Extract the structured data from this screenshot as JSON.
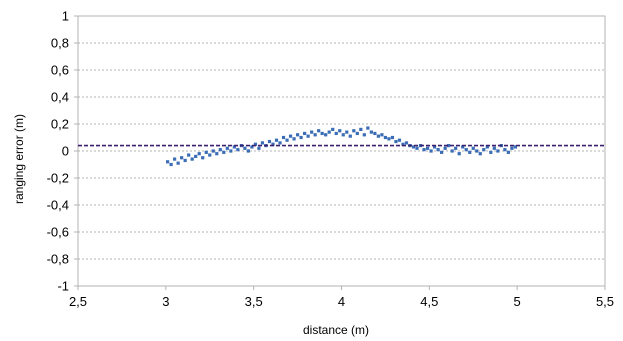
{
  "chart_data": {
    "type": "scatter",
    "title": "",
    "xlabel": "distance (m)",
    "ylabel": "ranging error (m)",
    "xlim": [
      2.5,
      5.5
    ],
    "ylim": [
      -1,
      1
    ],
    "x_ticks": [
      "2,5",
      "3",
      "3,5",
      "4",
      "4,5",
      "5",
      "5,5"
    ],
    "y_ticks": [
      "-1",
      "-0,8",
      "-0,6",
      "-0,4",
      "-0,2",
      "0",
      "0,2",
      "0,4",
      "0,6",
      "0,8",
      "1"
    ],
    "grid": true,
    "legend": "none",
    "series": [
      {
        "marker_color": "#3a6db5",
        "x": [
          3.01,
          3.03,
          3.05,
          3.07,
          3.09,
          3.11,
          3.13,
          3.15,
          3.17,
          3.19,
          3.21,
          3.23,
          3.25,
          3.27,
          3.29,
          3.31,
          3.33,
          3.35,
          3.37,
          3.39,
          3.41,
          3.43,
          3.45,
          3.47,
          3.49,
          3.51,
          3.53,
          3.55,
          3.57,
          3.59,
          3.61,
          3.63,
          3.65,
          3.67,
          3.69,
          3.71,
          3.73,
          3.75,
          3.77,
          3.79,
          3.81,
          3.83,
          3.85,
          3.87,
          3.89,
          3.91,
          3.93,
          3.95,
          3.97,
          3.99,
          4.01,
          4.03,
          4.05,
          4.07,
          4.09,
          4.11,
          4.13,
          4.15,
          4.17,
          4.19,
          4.21,
          4.23,
          4.25,
          4.27,
          4.29,
          4.31,
          4.33,
          4.35,
          4.37,
          4.39,
          4.41,
          4.43,
          4.45,
          4.47,
          4.49,
          4.51,
          4.53,
          4.55,
          4.57,
          4.59,
          4.61,
          4.63,
          4.65,
          4.67,
          4.69,
          4.71,
          4.73,
          4.75,
          4.77,
          4.79,
          4.81,
          4.83,
          4.85,
          4.87,
          4.89,
          4.91,
          4.93,
          4.95,
          4.97,
          4.99
        ],
        "y": [
          -0.08,
          -0.1,
          -0.06,
          -0.09,
          -0.05,
          -0.07,
          -0.03,
          -0.06,
          -0.04,
          -0.02,
          -0.05,
          -0.01,
          -0.03,
          0.0,
          -0.02,
          0.01,
          -0.01,
          0.02,
          0.0,
          0.03,
          0.01,
          0.04,
          0.02,
          0.0,
          0.03,
          0.05,
          0.02,
          0.06,
          0.04,
          0.07,
          0.05,
          0.08,
          0.06,
          0.1,
          0.08,
          0.11,
          0.09,
          0.12,
          0.1,
          0.13,
          0.11,
          0.14,
          0.12,
          0.15,
          0.13,
          0.12,
          0.14,
          0.16,
          0.13,
          0.15,
          0.12,
          0.14,
          0.11,
          0.15,
          0.13,
          0.16,
          0.12,
          0.17,
          0.14,
          0.13,
          0.11,
          0.12,
          0.1,
          0.09,
          0.1,
          0.07,
          0.08,
          0.05,
          0.06,
          0.04,
          0.03,
          0.02,
          0.04,
          0.01,
          0.02,
          0.0,
          0.03,
          0.01,
          -0.01,
          0.02,
          0.04,
          0.0,
          0.02,
          -0.02,
          0.03,
          0.01,
          -0.01,
          0.02,
          0.0,
          -0.02,
          0.01,
          0.03,
          -0.01,
          0.02,
          0.0,
          0.04,
          0.01,
          -0.01,
          0.02,
          0.03
        ]
      },
      {
        "type": "line",
        "style": "dashed",
        "color": "#3b2070",
        "x": [
          2.5,
          5.5
        ],
        "y": [
          0.04,
          0.04
        ]
      }
    ]
  }
}
